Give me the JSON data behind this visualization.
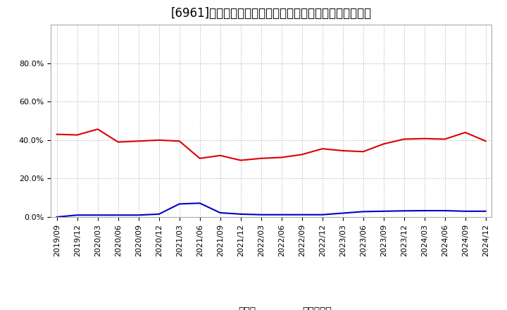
{
  "title": "[6961]　現預金、有利子負債の総資産に対する比率の推移",
  "x_labels": [
    "2019/09",
    "2019/12",
    "2020/03",
    "2020/06",
    "2020/09",
    "2020/12",
    "2021/03",
    "2021/06",
    "2021/09",
    "2021/12",
    "2022/03",
    "2022/06",
    "2022/09",
    "2022/12",
    "2023/03",
    "2023/06",
    "2023/09",
    "2023/12",
    "2024/03",
    "2024/06",
    "2024/09",
    "2024/12"
  ],
  "cash_values": [
    0.43,
    0.427,
    0.457,
    0.39,
    0.395,
    0.4,
    0.395,
    0.305,
    0.32,
    0.295,
    0.305,
    0.31,
    0.325,
    0.355,
    0.345,
    0.34,
    0.38,
    0.405,
    0.408,
    0.405,
    0.44,
    0.395
  ],
  "debt_values": [
    0.0,
    0.01,
    0.01,
    0.01,
    0.01,
    0.015,
    0.068,
    0.072,
    0.022,
    0.015,
    0.012,
    0.012,
    0.012,
    0.012,
    0.02,
    0.028,
    0.03,
    0.032,
    0.033,
    0.033,
    0.03,
    0.03
  ],
  "cash_color": "#dd0000",
  "debt_color": "#0000cc",
  "background_color": "#ffffff",
  "plot_bg_color": "#ffffff",
  "grid_color": "#aaaaaa",
  "legend_cash": "現預金",
  "legend_debt": "有利子負債",
  "ylim": [
    0.0,
    1.0
  ],
  "yticks": [
    0.0,
    0.2,
    0.4,
    0.6,
    0.8
  ],
  "title_fontsize": 12,
  "legend_fontsize": 10,
  "tick_fontsize": 8
}
